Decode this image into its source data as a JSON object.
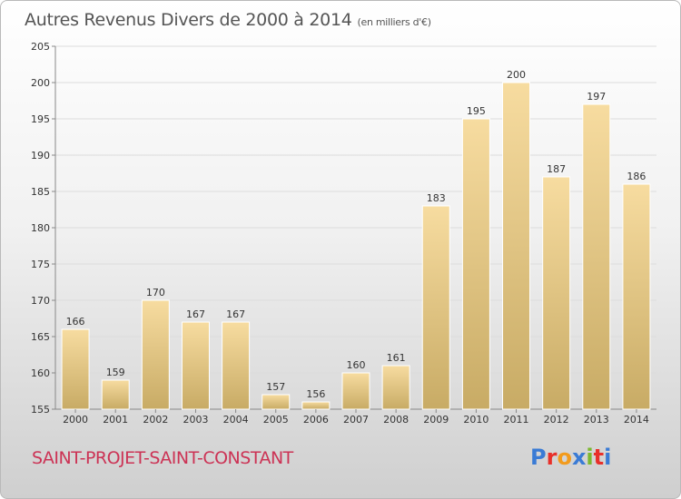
{
  "header": {
    "title": "Autres Revenus Divers de 2000 à 2014",
    "unit": "(en milliers d'€)"
  },
  "footer": {
    "commune": "SAINT-PROJET-SAINT-CONSTANT",
    "brand": "Proxiti",
    "brand_colors": [
      "#3a7bd5",
      "#e8302a",
      "#f29b1d",
      "#3a7bd5",
      "#7cb82f",
      "#e8302a",
      "#3a7bd5"
    ]
  },
  "colors": {
    "bar_top": "#f7dca0",
    "bar_bottom": "#c8ab65",
    "bar_edge": "#ffffff",
    "title": "#555555",
    "commune": "#cc3355"
  },
  "chart_data": {
    "type": "bar",
    "title": "Autres Revenus Divers de 2000 à 2014",
    "subtitle": "(en milliers d'€)",
    "categories": [
      "2000",
      "2001",
      "2002",
      "2003",
      "2004",
      "2005",
      "2006",
      "2007",
      "2008",
      "2009",
      "2010",
      "2011",
      "2012",
      "2013",
      "2014"
    ],
    "values": [
      166,
      159,
      170,
      167,
      167,
      157,
      156,
      160,
      161,
      183,
      195,
      200,
      187,
      197,
      186
    ],
    "ylim": [
      155,
      205
    ],
    "yticks": [
      155,
      160,
      165,
      170,
      175,
      180,
      185,
      190,
      195,
      200,
      205
    ],
    "grid": true,
    "legend": "none"
  }
}
